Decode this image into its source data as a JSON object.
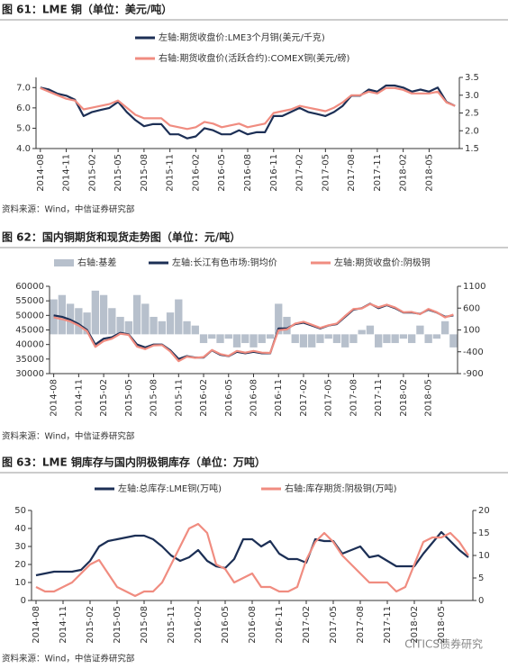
{
  "chart_data": [
    {
      "type": "line",
      "title": "图 61：LME 铜（单位：美元/吨）",
      "source": "资料来源：Wind，中信证券研究部",
      "categories": [
        "2014-08",
        null,
        null,
        "2014-11",
        null,
        null,
        "2015-02",
        null,
        null,
        "2015-05",
        null,
        null,
        "2015-08",
        null,
        null,
        "2015-11",
        null,
        null,
        "2016-02",
        null,
        null,
        "2016-05",
        null,
        null,
        "2016-08",
        null,
        null,
        "2016-11",
        null,
        null,
        "2017-02",
        null,
        null,
        "2017-05",
        null,
        null,
        "2017-08",
        null,
        null,
        "2017-11",
        null,
        null,
        "2018-02",
        null,
        null,
        "2018-05",
        null,
        null,
        null
      ],
      "series": [
        {
          "name": "左轴:期货收盘价:LME3个月铜(美元/千克)",
          "color": "#1c2f55",
          "axis": "y",
          "values": [
            7.0,
            6.9,
            6.7,
            6.6,
            6.4,
            5.6,
            5.8,
            5.9,
            6.0,
            6.3,
            5.8,
            5.4,
            5.1,
            5.2,
            5.2,
            4.7,
            4.7,
            4.5,
            4.6,
            5.0,
            4.9,
            4.7,
            4.7,
            4.9,
            4.7,
            4.8,
            4.8,
            5.6,
            5.6,
            5.8,
            6.0,
            5.8,
            5.7,
            5.6,
            5.8,
            6.1,
            6.6,
            6.6,
            6.9,
            6.8,
            7.1,
            7.1,
            7.0,
            6.8,
            6.9,
            6.8,
            7.0,
            6.3,
            6.1
          ]
        },
        {
          "name": "右轴:期货收盘价(活跃合约):COMEX铜(美元/磅)",
          "color": "#f08c80",
          "axis": "y2",
          "values": [
            3.2,
            3.1,
            3.0,
            2.9,
            2.85,
            2.6,
            2.65,
            2.7,
            2.75,
            2.85,
            2.65,
            2.45,
            2.35,
            2.35,
            2.35,
            2.15,
            2.1,
            2.05,
            2.1,
            2.25,
            2.2,
            2.1,
            2.15,
            2.2,
            2.1,
            2.15,
            2.2,
            2.5,
            2.55,
            2.6,
            2.7,
            2.65,
            2.6,
            2.55,
            2.65,
            2.8,
            3.0,
            3.0,
            3.1,
            3.05,
            3.2,
            3.2,
            3.15,
            3.05,
            3.05,
            3.05,
            3.1,
            2.8,
            2.7
          ]
        }
      ],
      "ylim": [
        4.0,
        7.5
      ],
      "yticks": [
        {
          "value": 4,
          "label": "4.0"
        },
        {
          "value": 5,
          "label": "5.0"
        },
        {
          "value": 6,
          "label": "6.0"
        },
        {
          "value": 7,
          "label": "7.0"
        }
      ],
      "y2lim": [
        1.5,
        3.5
      ],
      "y2ticks": [
        1.5,
        {
          "value": 2,
          "label": "2.0"
        },
        2.5,
        {
          "value": 3,
          "label": "3.0"
        },
        3.5
      ]
    },
    {
      "type": "line",
      "title": "图 62：国内铜期货和现货走势图（单位：元/吨）",
      "source": "资料来源：Wind，中信证券研究部",
      "categories": [
        "2014-08",
        null,
        null,
        "2014-11",
        null,
        null,
        "2015-02",
        null,
        null,
        "2015-05",
        null,
        null,
        "2015-08",
        null,
        null,
        "2015-11",
        null,
        null,
        "2016-02",
        null,
        null,
        "2016-05",
        null,
        null,
        "2016-08",
        null,
        null,
        "2016-11",
        null,
        null,
        "2017-02",
        null,
        null,
        "2017-05",
        null,
        null,
        "2017-08",
        null,
        null,
        "2017-11",
        null,
        null,
        "2018-02",
        null,
        null,
        "2018-05",
        null,
        null,
        null
      ],
      "series": [
        {
          "name": "右轴:基差",
          "color": "#b7c0cc",
          "axis": "y2",
          "type": "bar",
          "values": [
            800,
            900,
            700,
            600,
            500,
            1000,
            900,
            600,
            400,
            300,
            900,
            700,
            400,
            300,
            500,
            800,
            300,
            200,
            -200,
            -100,
            -200,
            -100,
            -300,
            -200,
            -300,
            -200,
            -100,
            700,
            400,
            -200,
            -300,
            -300,
            -200,
            -100,
            -200,
            -300,
            -200,
            100,
            200,
            -300,
            -200,
            -200,
            -100,
            -200,
            200,
            -200,
            -100,
            300,
            -300
          ]
        },
        {
          "name": "左轴:长江有色市场:铜均价",
          "color": "#1c2f55",
          "axis": "y",
          "values": [
            50000,
            49500,
            48500,
            47000,
            45000,
            40000,
            42000,
            42500,
            44000,
            43500,
            40000,
            39000,
            40000,
            40000,
            38000,
            35000,
            36000,
            35500,
            35500,
            38000,
            36500,
            36000,
            37500,
            37000,
            37500,
            37000,
            37000,
            45500,
            45500,
            47000,
            47500,
            46500,
            45500,
            46500,
            47000,
            49500,
            52000,
            52500,
            54000,
            52500,
            53500,
            52500,
            51000,
            51000,
            50500,
            52000,
            51000,
            49500,
            50000
          ]
        },
        {
          "name": "左轴:期货收盘价:阴极铜",
          "color": "#f08c80",
          "axis": "y",
          "values": [
            49300,
            48700,
            47900,
            46500,
            44600,
            39200,
            41200,
            42000,
            43700,
            43300,
            39300,
            38400,
            39700,
            39800,
            37600,
            34300,
            35800,
            35400,
            35700,
            38100,
            36700,
            36100,
            37800,
            37200,
            37800,
            37200,
            37100,
            44900,
            45200,
            47200,
            47800,
            46800,
            45700,
            46600,
            47200,
            49800,
            52200,
            52400,
            53900,
            52800,
            53700,
            52700,
            51100,
            51200,
            50400,
            52200,
            51100,
            49300,
            50300
          ]
        }
      ],
      "ylim": [
        30000,
        60000
      ],
      "yticks": [
        30000,
        35000,
        40000,
        45000,
        50000,
        55000,
        60000
      ],
      "y2lim": [
        -900,
        1100
      ],
      "y2ticks": [
        -900,
        -400,
        100,
        600,
        1100
      ]
    },
    {
      "type": "line",
      "title": "图 63：LME 铜库存与国内阴极铜库存（单位：万吨）",
      "source": "资料来源：Wind，中信证券研究部",
      "categories": [
        "2014-08",
        null,
        null,
        "2014-11",
        null,
        null,
        "2015-02",
        null,
        null,
        "2015-05",
        null,
        null,
        "2015-08",
        null,
        null,
        "2015-11",
        null,
        null,
        "2016-02",
        null,
        null,
        "2016-05",
        null,
        null,
        "2016-08",
        null,
        null,
        "2016-11",
        null,
        null,
        "2017-02",
        null,
        null,
        "2017-05",
        null,
        null,
        "2017-08",
        null,
        null,
        "2017-11",
        null,
        null,
        "2018-02",
        null,
        null,
        "2018-05",
        null,
        null,
        null
      ],
      "series": [
        {
          "name": "左轴:总库存:LME铜(万吨)",
          "color": "#1c2f55",
          "axis": "y",
          "values": [
            14,
            15,
            16,
            16,
            16,
            17,
            22,
            30,
            33,
            34,
            35,
            36,
            36,
            34,
            30,
            25,
            22,
            24,
            28,
            22,
            19,
            18,
            23,
            34,
            34,
            30,
            33,
            26,
            23,
            23,
            21,
            34,
            33,
            33,
            26,
            28,
            30,
            24,
            25,
            22,
            19,
            19,
            19,
            26,
            32,
            38,
            33,
            28,
            24
          ]
        },
        {
          "name": "右轴:库存期货:阴极铜(万吨)",
          "color": "#f08c80",
          "axis": "y2",
          "values": [
            3,
            2,
            2,
            3,
            4,
            6,
            8,
            9,
            6,
            3,
            2,
            1,
            2,
            2,
            4,
            8,
            12,
            16,
            17,
            15,
            8,
            7,
            4,
            5,
            6,
            3,
            3,
            2,
            2,
            3,
            9,
            13,
            15,
            13,
            10,
            8,
            6,
            4,
            4,
            4,
            2,
            3,
            8,
            13,
            14,
            14,
            15,
            13,
            10
          ]
        }
      ],
      "ylim": [
        0,
        50
      ],
      "yticks": [
        0,
        10,
        20,
        30,
        40,
        50
      ],
      "y2lim": [
        0,
        20
      ],
      "y2ticks": [
        0,
        5,
        10,
        15,
        20
      ]
    }
  ],
  "watermark": "CITICS债券研究"
}
